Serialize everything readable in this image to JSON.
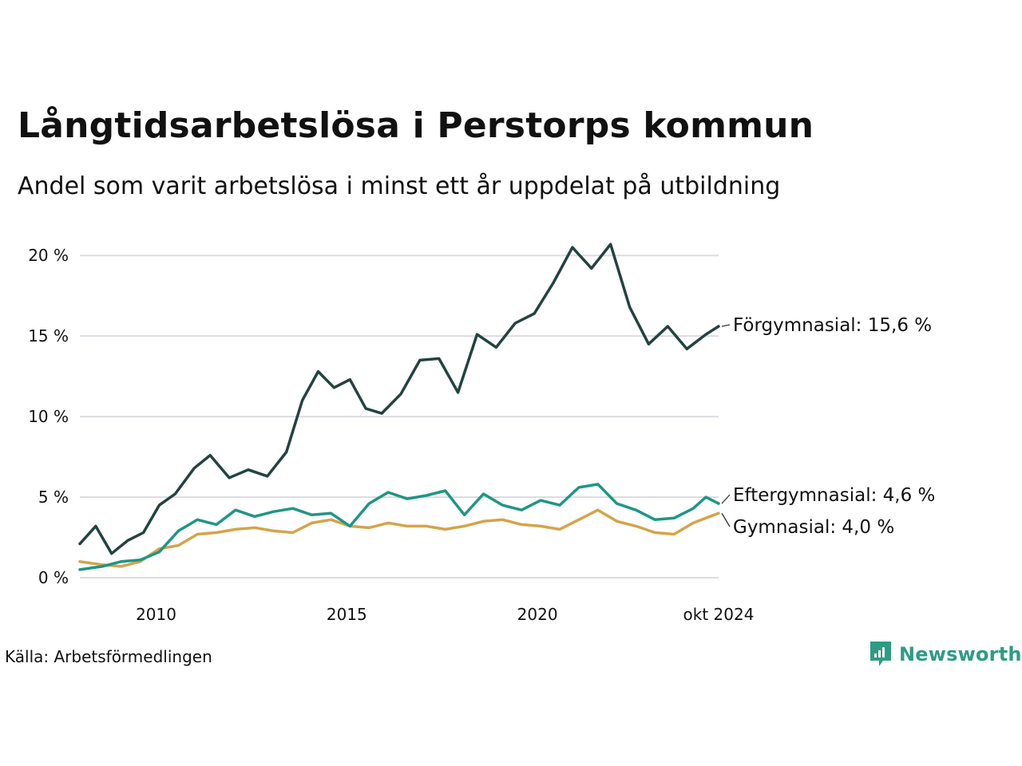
{
  "title": "Långtidsarbetslösa i Perstorps kommun",
  "subtitle": "Andel som varit arbetslösa i minst ett år uppdelat på utbildning",
  "source": "Källa: Arbetsförmedlingen",
  "brand": "Newsworthy",
  "colors": {
    "forgymnasial": "#23433f",
    "eftergymnasial": "#1f9684",
    "gymnasial": "#d4a44a",
    "grid": "#dcdce4",
    "brand": "#2e9c85"
  },
  "chart_data": {
    "type": "line",
    "title": "Långtidsarbetslösa i Perstorps kommun",
    "subtitle": "Andel som varit arbetslösa i minst ett år uppdelat på utbildning",
    "xlabel": "",
    "ylabel": "",
    "x_range": [
      "2008-01",
      "2024-10"
    ],
    "ylim": [
      0,
      21
    ],
    "yticks": [
      0,
      5,
      10,
      15,
      20
    ],
    "ytick_labels": [
      "0 %",
      "5 %",
      "10 %",
      "15 %",
      "20 %"
    ],
    "xticks": [
      "2010",
      "2015",
      "2020",
      "okt 2024"
    ],
    "grid": true,
    "legend": "direct labels at line ends",
    "series": [
      {
        "name": "Förgymnasial",
        "end_label": "Förgymnasial: 15,6 %",
        "x": [
          "2008-01",
          "2008-06",
          "2008-11",
          "2009-04",
          "2009-09",
          "2010-02",
          "2010-07",
          "2011-01",
          "2011-06",
          "2011-12",
          "2012-06",
          "2012-12",
          "2013-06",
          "2013-11",
          "2014-04",
          "2014-09",
          "2015-02",
          "2015-07",
          "2015-12",
          "2016-06",
          "2016-12",
          "2017-06",
          "2017-12",
          "2018-06",
          "2018-12",
          "2019-06",
          "2019-12",
          "2020-06",
          "2020-12",
          "2021-06",
          "2021-12",
          "2022-06",
          "2022-12",
          "2023-06",
          "2023-12",
          "2024-06",
          "2024-10"
        ],
        "values": [
          2.1,
          3.2,
          1.5,
          2.3,
          2.8,
          4.5,
          5.2,
          6.8,
          7.6,
          6.2,
          6.7,
          6.3,
          7.8,
          11.0,
          12.8,
          11.8,
          12.3,
          10.5,
          10.2,
          11.4,
          13.5,
          13.6,
          11.5,
          15.1,
          14.3,
          15.8,
          16.4,
          18.3,
          20.5,
          19.2,
          20.7,
          16.8,
          14.5,
          15.6,
          14.2,
          15.1,
          15.6
        ]
      },
      {
        "name": "Eftergymnasial",
        "end_label": "Eftergymnasial:  4,6 %",
        "x": [
          "2008-01",
          "2008-08",
          "2009-02",
          "2009-08",
          "2010-02",
          "2010-08",
          "2011-02",
          "2011-08",
          "2012-02",
          "2012-08",
          "2013-02",
          "2013-08",
          "2014-02",
          "2014-08",
          "2015-02",
          "2015-08",
          "2016-02",
          "2016-08",
          "2017-02",
          "2017-08",
          "2018-02",
          "2018-08",
          "2019-02",
          "2019-08",
          "2020-02",
          "2020-08",
          "2021-02",
          "2021-08",
          "2022-02",
          "2022-08",
          "2023-02",
          "2023-08",
          "2024-02",
          "2024-06",
          "2024-10"
        ],
        "values": [
          0.5,
          0.7,
          1.0,
          1.1,
          1.6,
          2.9,
          3.6,
          3.3,
          4.2,
          3.8,
          4.1,
          4.3,
          3.9,
          4.0,
          3.2,
          4.6,
          5.3,
          4.9,
          5.1,
          5.4,
          3.9,
          5.2,
          4.5,
          4.2,
          4.8,
          4.5,
          5.6,
          5.8,
          4.6,
          4.2,
          3.6,
          3.7,
          4.3,
          5.0,
          4.6
        ]
      },
      {
        "name": "Gymnasial",
        "end_label": "Gymnasial:  4,0 %",
        "x": [
          "2008-01",
          "2008-08",
          "2009-02",
          "2009-08",
          "2010-02",
          "2010-08",
          "2011-02",
          "2011-08",
          "2012-02",
          "2012-08",
          "2013-02",
          "2013-08",
          "2014-02",
          "2014-08",
          "2015-02",
          "2015-08",
          "2016-02",
          "2016-08",
          "2017-02",
          "2017-08",
          "2018-02",
          "2018-08",
          "2019-02",
          "2019-08",
          "2020-02",
          "2020-08",
          "2021-02",
          "2021-08",
          "2022-02",
          "2022-08",
          "2023-02",
          "2023-08",
          "2024-02",
          "2024-06",
          "2024-10"
        ],
        "values": [
          1.0,
          0.8,
          0.7,
          1.0,
          1.8,
          2.0,
          2.7,
          2.8,
          3.0,
          3.1,
          2.9,
          2.8,
          3.4,
          3.6,
          3.2,
          3.1,
          3.4,
          3.2,
          3.2,
          3.0,
          3.2,
          3.5,
          3.6,
          3.3,
          3.2,
          3.0,
          3.6,
          4.2,
          3.5,
          3.2,
          2.8,
          2.7,
          3.4,
          3.7,
          4.0
        ]
      }
    ]
  }
}
